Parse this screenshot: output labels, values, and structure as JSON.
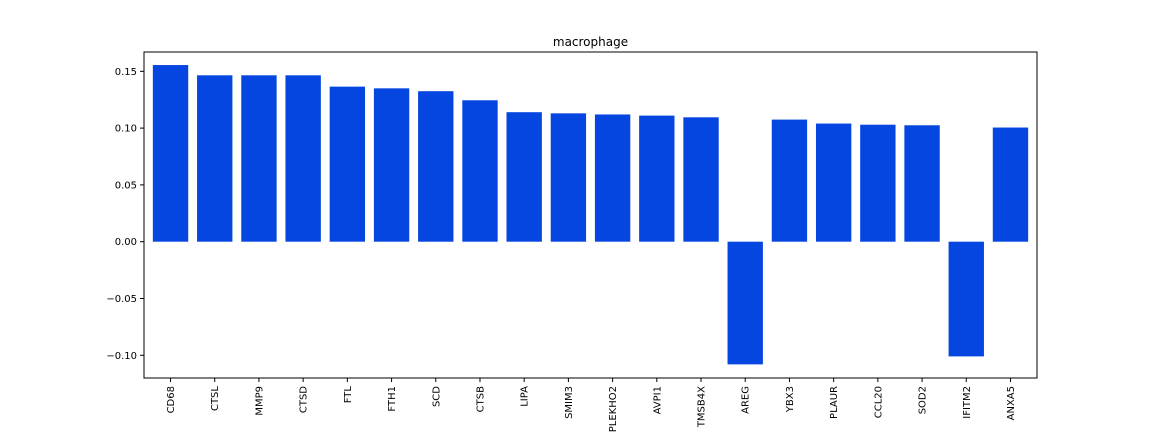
{
  "chart_data": {
    "type": "bar",
    "title": "macrophage",
    "xlabel": "",
    "ylabel": "",
    "categories": [
      "CD68",
      "CTSL",
      "MMP9",
      "CTSD",
      "FTL",
      "FTH1",
      "SCD",
      "CTSB",
      "LIPA",
      "SMIM3",
      "PLEKHO2",
      "AVPI1",
      "TMSB4X",
      "AREG",
      "YBX3",
      "PLAUR",
      "CCL20",
      "SOD2",
      "IFITM2",
      "ANXA5"
    ],
    "values": [
      0.1555,
      0.1465,
      0.1465,
      0.1465,
      0.1365,
      0.135,
      0.1325,
      0.1245,
      0.114,
      0.113,
      0.112,
      0.111,
      0.1095,
      -0.108,
      0.1075,
      0.104,
      0.103,
      0.1025,
      -0.101,
      0.1005
    ],
    "ylim": [
      -0.12,
      0.167
    ],
    "yticks": [
      -0.1,
      -0.05,
      0.0,
      0.05,
      0.1,
      0.15
    ],
    "ytick_labels": [
      "−0.10",
      "−0.05",
      "0.00",
      "0.05",
      "0.10",
      "0.15"
    ],
    "bar_color": "#0546e0",
    "grid": false,
    "legend": "none"
  }
}
